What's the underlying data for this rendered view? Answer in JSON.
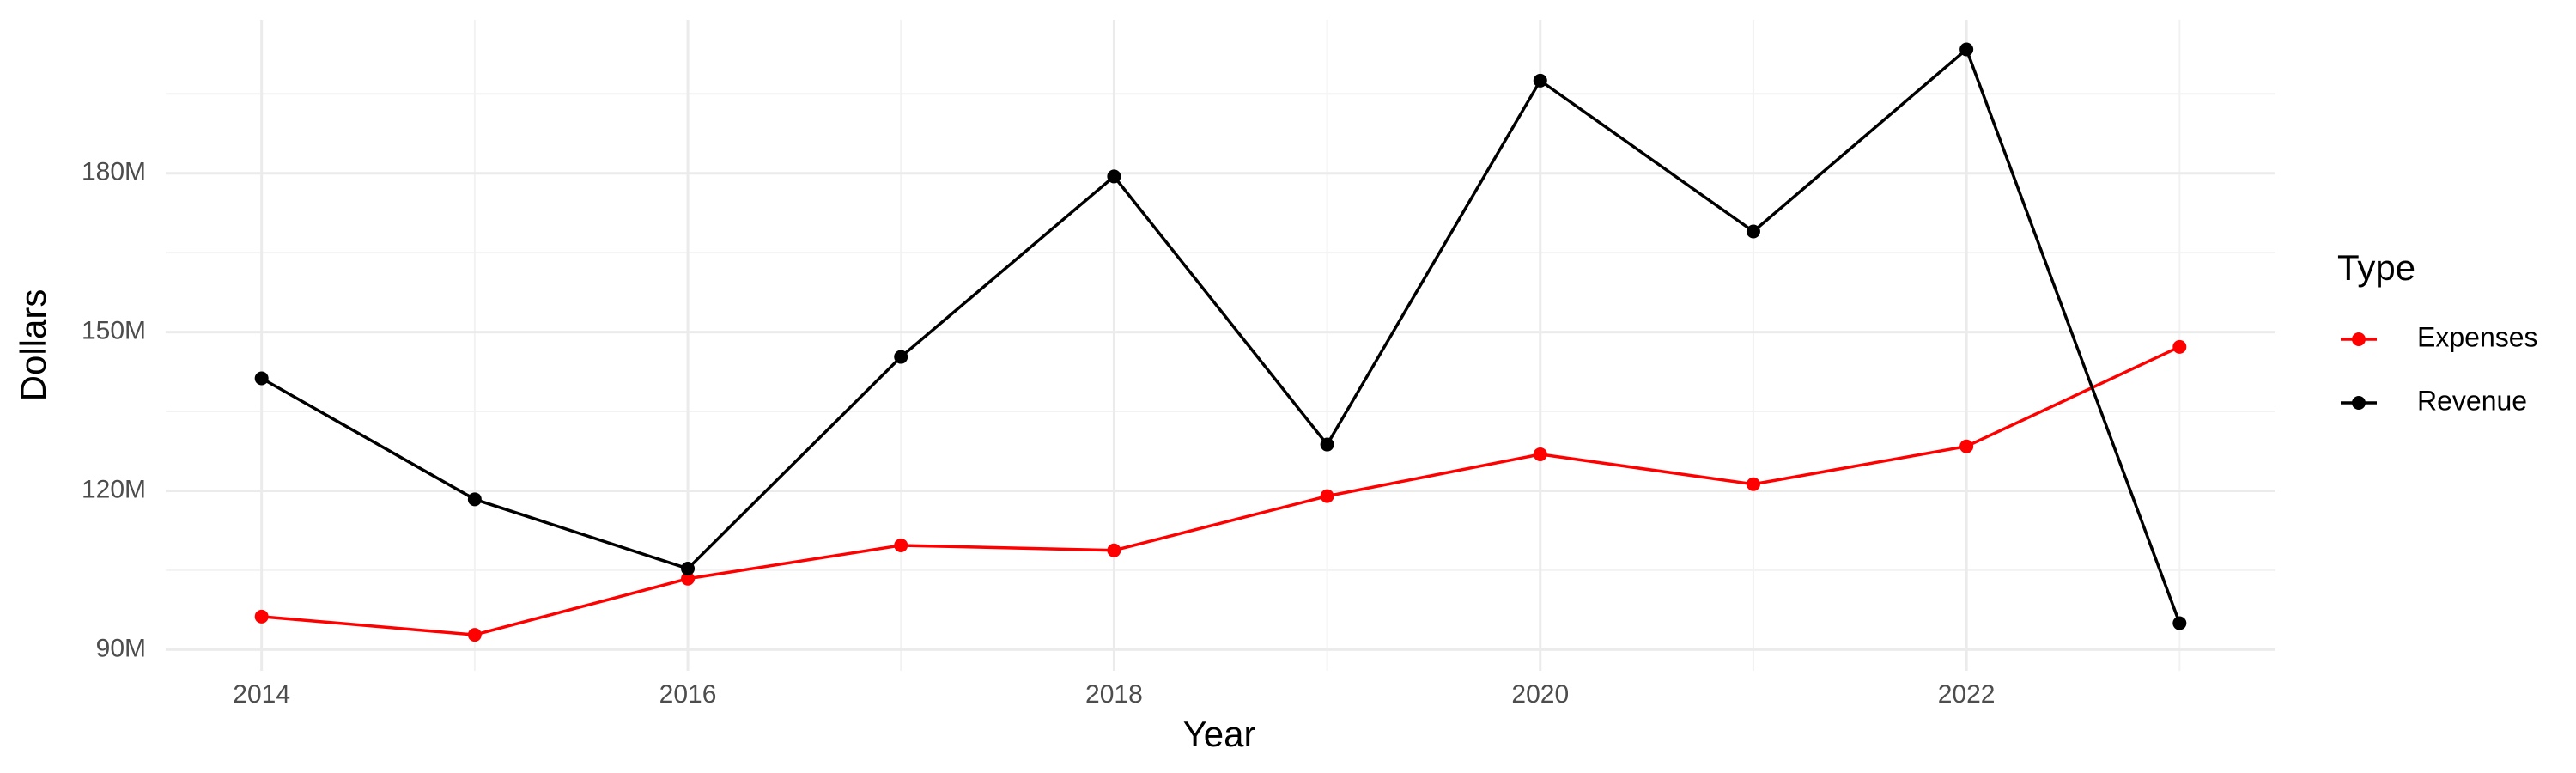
{
  "chart_data": {
    "type": "line",
    "x_label": "Year",
    "y_label": "Dollars",
    "legend_title": "Type",
    "legend": "right",
    "grid": true,
    "x": [
      2014,
      2015,
      2016,
      2017,
      2018,
      2019,
      2020,
      2021,
      2022,
      2023
    ],
    "series": [
      {
        "name": "Expenses",
        "color": "#ff0000",
        "values": [
          96250000,
          92800000,
          103400000,
          109700000,
          108750000,
          119000000,
          126900000,
          121250000,
          128400000,
          147200000
        ]
      },
      {
        "name": "Revenue",
        "color": "#000000",
        "values": [
          141250000,
          118400000,
          105300000,
          145300000,
          179400000,
          128750000,
          197500000,
          169000000,
          203400000,
          95000000
        ]
      }
    ],
    "xlim": [
      2013.55,
      2023.45
    ],
    "xticks": [
      2014,
      2016,
      2018,
      2020,
      2022
    ],
    "ylim": [
      86000000,
      209000000
    ],
    "yticks": [
      {
        "value": 90000000,
        "label": "90M"
      },
      {
        "value": 120000000,
        "label": "120M"
      },
      {
        "value": 150000000,
        "label": "150M"
      },
      {
        "value": 180000000,
        "label": "180M"
      }
    ]
  }
}
